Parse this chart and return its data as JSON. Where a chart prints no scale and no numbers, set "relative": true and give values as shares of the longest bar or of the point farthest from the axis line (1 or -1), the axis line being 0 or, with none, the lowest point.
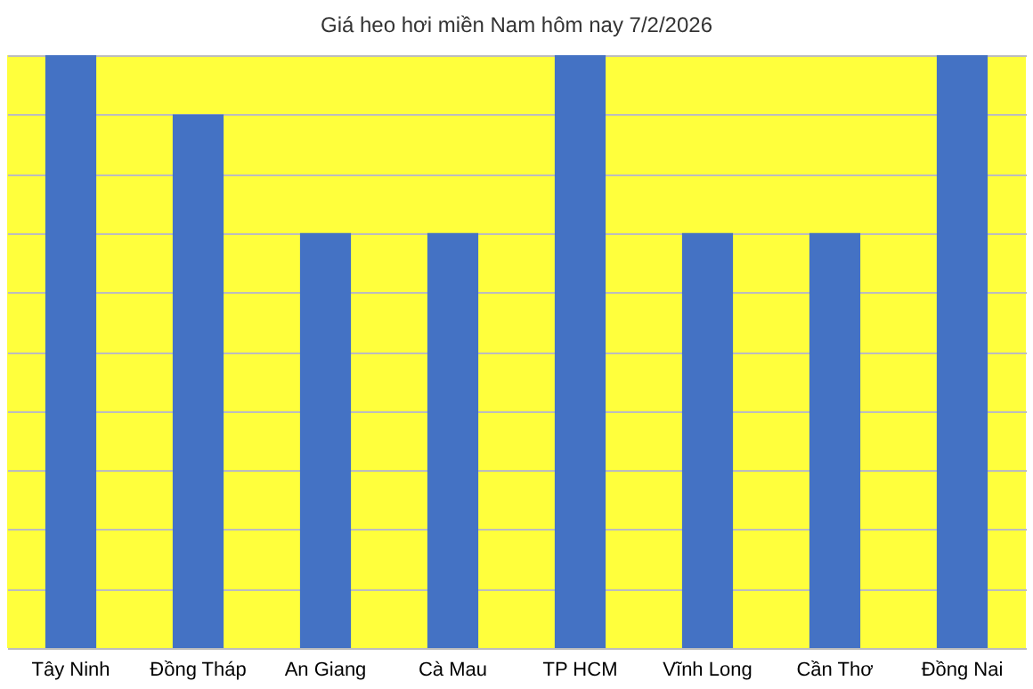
{
  "chart_data": {
    "type": "bar",
    "title": "Giá heo hơi miền Nam hôm nay 7/2/2026",
    "categories": [
      "Tây Ninh",
      "Đồng Tháp",
      "An Giang",
      "Cà Mau",
      "TP HCM",
      "Vĩnh Long",
      "Cần Thơ",
      "Đồng Nai"
    ],
    "values": [
      1,
      0.9,
      0.7,
      0.7,
      1,
      0.7,
      0.7,
      1
    ],
    "color": "#4472c4",
    "relative": true,
    "grid": "y"
  }
}
